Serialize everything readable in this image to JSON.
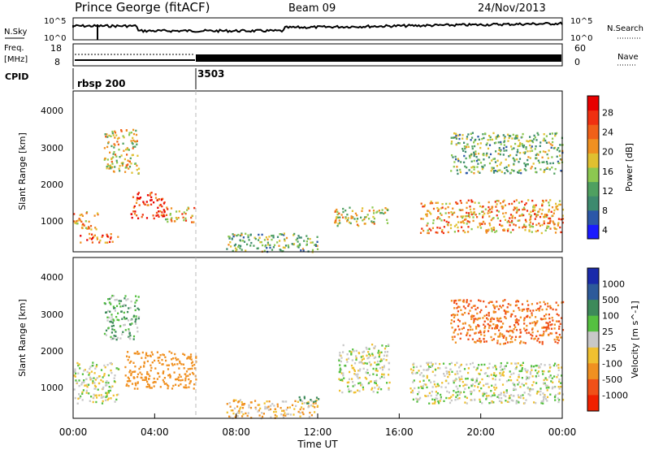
{
  "header": {
    "title": "Prince George (fitACF)",
    "beam": "Beam 09",
    "date": "24/Nov/2013"
  },
  "top_panels": {
    "nsky_label": "N.Sky",
    "nsearch_label": "N.Search",
    "nsky_ticks": [
      "10^5",
      "10^0"
    ],
    "nsearch_ticks": [
      "10^5",
      "10^0"
    ],
    "freq_label_1": "Freq.",
    "freq_label_2": "[MHz]",
    "freq_ticks": [
      "18",
      "8"
    ],
    "nave_label": "Nave",
    "nave_ticks": [
      "60",
      "0"
    ],
    "cpid_label": "CPID",
    "cpid_1": "rbsp 200",
    "cpid_2": "3503"
  },
  "power_panel": {
    "ylabel": "Slant Range [km]",
    "yticks": [
      "4000",
      "3000",
      "2000",
      "1000"
    ],
    "colorbar_label": "Power [dB]",
    "colorbar_ticks": [
      "28",
      "24",
      "20",
      "16",
      "12",
      "8",
      "4"
    ],
    "colors": [
      "#1a1aff",
      "#2c57a8",
      "#3d8a6e",
      "#4fa060",
      "#8cc850",
      "#e0c030",
      "#f09020",
      "#f06018",
      "#f03010",
      "#e80000"
    ]
  },
  "velocity_panel": {
    "ylabel": "Slant Range [km]",
    "yticks": [
      "4000",
      "3000",
      "2000",
      "1000"
    ],
    "colorbar_label": "Velocity [m s^-1]",
    "colorbar_ticks": [
      "1000",
      "500",
      "100",
      "25",
      "-25",
      "-100",
      "-500",
      "-1000"
    ],
    "colors": [
      "#1a2aaa",
      "#2d5a9a",
      "#3d8a5a",
      "#55c040",
      "#c8c8c8",
      "#f0c030",
      "#f09020",
      "#f05018",
      "#f02000"
    ]
  },
  "x_axis": {
    "ticks": [
      "00:00",
      "04:00",
      "08:00",
      "12:00",
      "16:00",
      "20:00",
      "00:00"
    ],
    "label": "Time UT"
  },
  "chart_data": {
    "type": "heatmap",
    "x_axis_hours": [
      0,
      24
    ],
    "y_range_km": [
      180,
      4500
    ],
    "cpid_switch_hour": 6,
    "power_regions": [
      {
        "t0": 0.0,
        "t1": 1.2,
        "r0": 800,
        "r1": 1300,
        "dB": 20
      },
      {
        "t0": 0.3,
        "t1": 2.2,
        "r0": 450,
        "r1": 700,
        "dB": 24
      },
      {
        "t0": 1.5,
        "t1": 3.2,
        "r0": 2300,
        "r1": 3500,
        "dB": 16
      },
      {
        "t0": 2.8,
        "t1": 4.5,
        "r0": 1100,
        "r1": 1800,
        "dB": 26
      },
      {
        "t0": 4.5,
        "t1": 6.0,
        "r0": 1000,
        "r1": 1400,
        "dB": 18
      },
      {
        "t0": 7.5,
        "t1": 12.0,
        "r0": 200,
        "r1": 700,
        "dB": 12
      },
      {
        "t0": 12.8,
        "t1": 15.5,
        "r0": 900,
        "r1": 1400,
        "dB": 16
      },
      {
        "t0": 17.0,
        "t1": 24.0,
        "r0": 700,
        "r1": 1600,
        "dB": 20
      },
      {
        "t0": 18.5,
        "t1": 24.0,
        "r0": 2300,
        "r1": 3400,
        "dB": 12
      }
    ],
    "velocity_regions": [
      {
        "t0": 0.0,
        "t1": 2.2,
        "r0": 600,
        "r1": 1700,
        "v": 0
      },
      {
        "t0": 2.5,
        "t1": 6.0,
        "r0": 1000,
        "r1": 2000,
        "v": -200
      },
      {
        "t0": 1.5,
        "t1": 3.2,
        "r0": 2300,
        "r1": 3500,
        "v": 50
      },
      {
        "t0": 7.5,
        "t1": 12.0,
        "r0": 200,
        "r1": 700,
        "v": -50
      },
      {
        "t0": 11.0,
        "t1": 12.0,
        "r0": 600,
        "r1": 800,
        "v": 150
      },
      {
        "t0": 13.0,
        "t1": 15.5,
        "r0": 900,
        "r1": 2200,
        "v": 0
      },
      {
        "t0": 16.5,
        "t1": 24.0,
        "r0": 600,
        "r1": 1700,
        "v": 0
      },
      {
        "t0": 18.5,
        "t1": 24.0,
        "r0": 2200,
        "r1": 3400,
        "v": -300
      }
    ]
  }
}
